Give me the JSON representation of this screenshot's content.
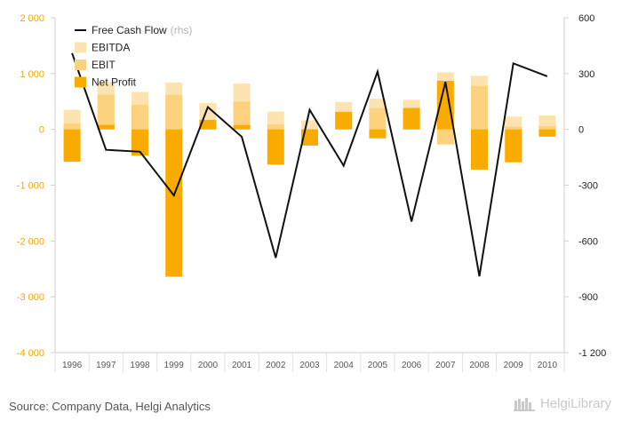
{
  "chart_data": {
    "type": "bar",
    "categories": [
      "1996",
      "1997",
      "1998",
      "1999",
      "2000",
      "2001",
      "2002",
      "2003",
      "2004",
      "2005",
      "2006",
      "2007",
      "2008",
      "2009",
      "2010"
    ],
    "series": [
      {
        "name": "EBITDA",
        "type": "bar",
        "axis": "left",
        "color": "#fde3b0",
        "values": [
          350,
          850,
          670,
          840,
          470,
          820,
          320,
          160,
          490,
          550,
          530,
          1020,
          960,
          230,
          250
        ]
      },
      {
        "name": "EBIT",
        "type": "bar",
        "axis": "left",
        "color": "#fcd27e",
        "values": [
          110,
          620,
          440,
          620,
          170,
          500,
          90,
          -80,
          320,
          380,
          390,
          -270,
          780,
          50,
          60
        ]
      },
      {
        "name": "Net Profit",
        "type": "bar",
        "axis": "left",
        "color": "#f9ab00",
        "values": [
          -580,
          80,
          -470,
          -2640,
          170,
          80,
          -630,
          -290,
          310,
          -160,
          380,
          870,
          -720,
          -590,
          -130
        ]
      },
      {
        "name": "Free Cash Flow",
        "legend_suffix": "(rhs)",
        "type": "line",
        "axis": "right",
        "color": "#111111",
        "values": [
          410,
          -110,
          -120,
          -355,
          120,
          -40,
          -690,
          105,
          -195,
          310,
          -495,
          255,
          -790,
          355,
          285
        ]
      }
    ],
    "y_left": {
      "ylim": [
        -4000,
        2000
      ],
      "ticks": [
        2000,
        1000,
        0,
        -1000,
        -2000,
        -3000,
        -4000
      ],
      "tick_labels": [
        "2 000",
        "1 000",
        "0",
        "-1 000",
        "-2 000",
        "-3 000",
        "-4 000"
      ],
      "color": "#f3a800"
    },
    "y_right": {
      "ylim": [
        -1200,
        600
      ],
      "ticks": [
        600,
        300,
        0,
        -300,
        -600,
        -900,
        -1200
      ],
      "tick_labels": [
        "600",
        "300",
        "0",
        "-300",
        "-600",
        "-900",
        "-1 200"
      ],
      "color": "#222222"
    },
    "legend": {
      "placement": "top-left"
    },
    "grid": false
  },
  "footer": {
    "source": "Source: Company Data, Helgi Analytics",
    "brand": "HelgiLibrary"
  }
}
